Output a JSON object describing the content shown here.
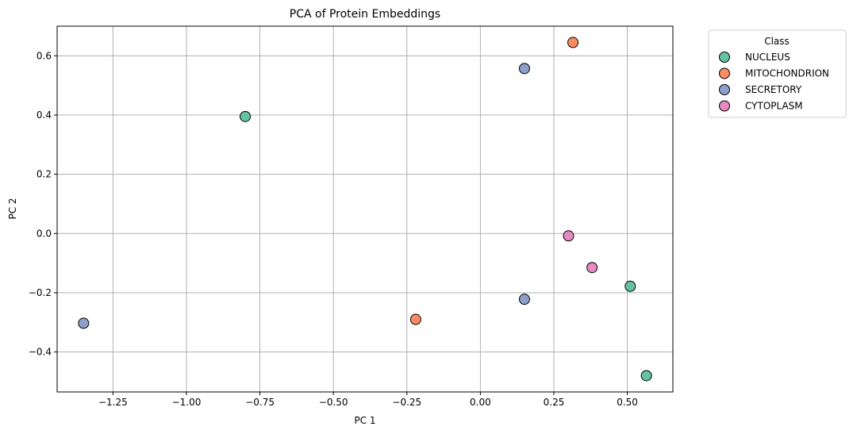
{
  "chart_data": {
    "type": "scatter",
    "title": "PCA of Protein Embeddings",
    "xlabel": "PC 1",
    "ylabel": "PC 2",
    "xlim": [
      -1.44,
      0.655
    ],
    "ylim": [
      -0.535,
      0.7
    ],
    "x_ticks": [
      -1.25,
      -1.0,
      -0.75,
      -0.5,
      -0.25,
      0.0,
      0.25,
      0.5
    ],
    "x_tick_labels": [
      "−1.25",
      "−1.00",
      "−0.75",
      "−0.50",
      "−0.25",
      "0.00",
      "0.25",
      "0.50"
    ],
    "y_ticks": [
      -0.4,
      -0.2,
      0.0,
      0.2,
      0.4,
      0.6
    ],
    "y_tick_labels": [
      "−0.4",
      "−0.2",
      "0.0",
      "0.2",
      "0.4",
      "0.6"
    ],
    "grid": true,
    "legend": {
      "title": "Class",
      "placement": "outside-upper-right"
    },
    "series": [
      {
        "name": "NUCLEUS",
        "color": "#66c2a5",
        "points": [
          [
            -0.8,
            0.395
          ],
          [
            0.51,
            -0.178
          ],
          [
            0.565,
            -0.48
          ]
        ]
      },
      {
        "name": "MITOCHONDRION",
        "color": "#fc8d62",
        "points": [
          [
            0.315,
            0.645
          ],
          [
            -0.22,
            -0.29
          ]
        ]
      },
      {
        "name": "SECRETORY",
        "color": "#8da0cb",
        "points": [
          [
            0.15,
            0.557
          ],
          [
            0.15,
            -0.222
          ],
          [
            -1.35,
            -0.303
          ]
        ]
      },
      {
        "name": "CYTOPLASM",
        "color": "#e78ac3",
        "points": [
          [
            0.3,
            -0.008
          ],
          [
            0.38,
            -0.115
          ]
        ]
      }
    ]
  }
}
